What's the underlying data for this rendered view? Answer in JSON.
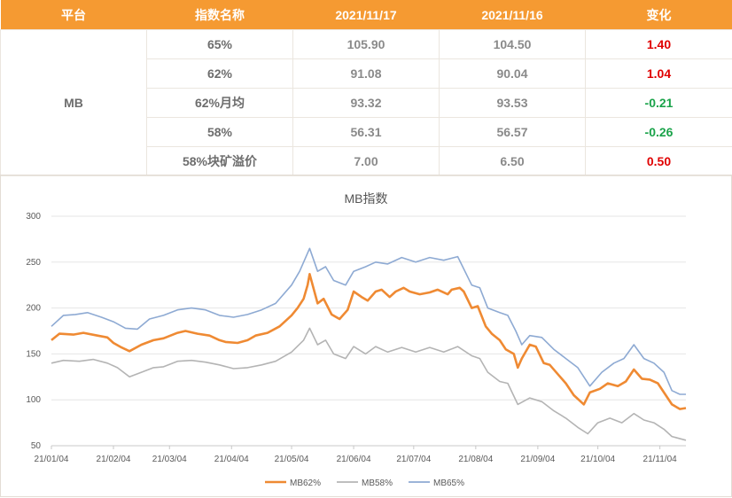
{
  "table": {
    "headers": [
      "平台",
      "指数名称",
      "2021/11/17",
      "2021/11/16",
      "变化"
    ],
    "platform": "MB",
    "rows": [
      {
        "name": "65%",
        "v1": "105.90",
        "v2": "104.50",
        "change": "1.40",
        "direction": "up"
      },
      {
        "name": "62%",
        "v1": "91.08",
        "v2": "90.04",
        "change": "1.04",
        "direction": "up"
      },
      {
        "name": "62%月均",
        "v1": "93.32",
        "v2": "93.53",
        "change": "-0.21",
        "direction": "down"
      },
      {
        "name": "58%",
        "v1": "56.31",
        "v2": "56.57",
        "change": "-0.26",
        "direction": "down"
      },
      {
        "name": "58%块矿溢价",
        "v1": "7.00",
        "v2": "6.50",
        "change": "0.50",
        "direction": "up"
      }
    ],
    "colors": {
      "header_bg": "#f59a32",
      "header_text": "#ffffff",
      "up": "#e00000",
      "down": "#1aa34a"
    }
  },
  "chart_data": {
    "type": "line",
    "title": "MB指数",
    "y_ticks": [
      "300",
      "250",
      "200",
      "150",
      "100",
      "50"
    ],
    "ylim": [
      50,
      300
    ],
    "x_ticks": [
      "21/01/04",
      "21/02/04",
      "21/03/04",
      "21/04/04",
      "21/05/04",
      "21/06/04",
      "21/07/04",
      "21/08/04",
      "21/09/04",
      "21/10/04",
      "21/11/04"
    ],
    "x_range": [
      "2021-01-04",
      "2021-11-17"
    ],
    "grid": "horizontal",
    "legend_position": "bottom",
    "series": [
      {
        "name": "MB62%",
        "color": "#ef8a33",
        "points": [
          [
            "2021-01-04",
            165
          ],
          [
            "2021-01-08",
            172
          ],
          [
            "2021-01-15",
            171
          ],
          [
            "2021-01-20",
            173
          ],
          [
            "2021-01-27",
            170
          ],
          [
            "2021-02-01",
            168
          ],
          [
            "2021-02-04",
            162
          ],
          [
            "2021-02-08",
            157
          ],
          [
            "2021-02-12",
            153
          ],
          [
            "2021-02-18",
            160
          ],
          [
            "2021-02-24",
            165
          ],
          [
            "2021-03-01",
            167
          ],
          [
            "2021-03-08",
            173
          ],
          [
            "2021-03-12",
            175
          ],
          [
            "2021-03-18",
            172
          ],
          [
            "2021-03-24",
            170
          ],
          [
            "2021-03-29",
            165
          ],
          [
            "2021-04-01",
            163
          ],
          [
            "2021-04-07",
            162
          ],
          [
            "2021-04-12",
            165
          ],
          [
            "2021-04-16",
            170
          ],
          [
            "2021-04-22",
            173
          ],
          [
            "2021-04-28",
            180
          ],
          [
            "2021-05-04",
            192
          ],
          [
            "2021-05-07",
            200
          ],
          [
            "2021-05-10",
            210
          ],
          [
            "2021-05-12",
            225
          ],
          [
            "2021-05-13",
            237
          ],
          [
            "2021-05-17",
            205
          ],
          [
            "2021-05-20",
            210
          ],
          [
            "2021-05-24",
            193
          ],
          [
            "2021-05-28",
            188
          ],
          [
            "2021-06-01",
            198
          ],
          [
            "2021-06-04",
            218
          ],
          [
            "2021-06-08",
            212
          ],
          [
            "2021-06-11",
            208
          ],
          [
            "2021-06-15",
            218
          ],
          [
            "2021-06-18",
            220
          ],
          [
            "2021-06-22",
            212
          ],
          [
            "2021-06-25",
            218
          ],
          [
            "2021-06-29",
            222
          ],
          [
            "2021-07-02",
            218
          ],
          [
            "2021-07-07",
            215
          ],
          [
            "2021-07-12",
            217
          ],
          [
            "2021-07-16",
            220
          ],
          [
            "2021-07-21",
            215
          ],
          [
            "2021-07-23",
            220
          ],
          [
            "2021-07-27",
            222
          ],
          [
            "2021-07-29",
            218
          ],
          [
            "2021-08-02",
            200
          ],
          [
            "2021-08-05",
            202
          ],
          [
            "2021-08-09",
            180
          ],
          [
            "2021-08-12",
            172
          ],
          [
            "2021-08-16",
            165
          ],
          [
            "2021-08-19",
            155
          ],
          [
            "2021-08-23",
            150
          ],
          [
            "2021-08-25",
            135
          ],
          [
            "2021-08-27",
            145
          ],
          [
            "2021-08-31",
            160
          ],
          [
            "2021-09-03",
            158
          ],
          [
            "2021-09-07",
            140
          ],
          [
            "2021-09-10",
            138
          ],
          [
            "2021-09-14",
            128
          ],
          [
            "2021-09-18",
            118
          ],
          [
            "2021-09-22",
            105
          ],
          [
            "2021-09-27",
            95
          ],
          [
            "2021-09-30",
            108
          ],
          [
            "2021-10-05",
            112
          ],
          [
            "2021-10-09",
            118
          ],
          [
            "2021-10-14",
            115
          ],
          [
            "2021-10-18",
            120
          ],
          [
            "2021-10-22",
            133
          ],
          [
            "2021-10-26",
            123
          ],
          [
            "2021-10-30",
            122
          ],
          [
            "2021-11-03",
            118
          ],
          [
            "2021-11-06",
            108
          ],
          [
            "2021-11-10",
            95
          ],
          [
            "2021-11-14",
            90
          ],
          [
            "2021-11-17",
            91
          ]
        ]
      },
      {
        "name": "MB58%",
        "color": "#b4b4b4",
        "points": [
          [
            "2021-01-04",
            140
          ],
          [
            "2021-01-10",
            143
          ],
          [
            "2021-01-18",
            142
          ],
          [
            "2021-01-25",
            144
          ],
          [
            "2021-02-01",
            140
          ],
          [
            "2021-02-06",
            135
          ],
          [
            "2021-02-12",
            125
          ],
          [
            "2021-02-18",
            130
          ],
          [
            "2021-02-24",
            135
          ],
          [
            "2021-03-01",
            136
          ],
          [
            "2021-03-08",
            142
          ],
          [
            "2021-03-15",
            143
          ],
          [
            "2021-03-22",
            141
          ],
          [
            "2021-03-29",
            138
          ],
          [
            "2021-04-05",
            134
          ],
          [
            "2021-04-12",
            135
          ],
          [
            "2021-04-19",
            138
          ],
          [
            "2021-04-26",
            142
          ],
          [
            "2021-05-04",
            152
          ],
          [
            "2021-05-10",
            165
          ],
          [
            "2021-05-13",
            178
          ],
          [
            "2021-05-17",
            160
          ],
          [
            "2021-05-21",
            165
          ],
          [
            "2021-05-25",
            150
          ],
          [
            "2021-05-31",
            145
          ],
          [
            "2021-06-04",
            158
          ],
          [
            "2021-06-10",
            150
          ],
          [
            "2021-06-15",
            158
          ],
          [
            "2021-06-21",
            152
          ],
          [
            "2021-06-28",
            157
          ],
          [
            "2021-07-05",
            152
          ],
          [
            "2021-07-12",
            157
          ],
          [
            "2021-07-19",
            152
          ],
          [
            "2021-07-26",
            158
          ],
          [
            "2021-08-02",
            148
          ],
          [
            "2021-08-06",
            145
          ],
          [
            "2021-08-10",
            130
          ],
          [
            "2021-08-16",
            120
          ],
          [
            "2021-08-20",
            118
          ],
          [
            "2021-08-25",
            95
          ],
          [
            "2021-08-31",
            102
          ],
          [
            "2021-09-06",
            98
          ],
          [
            "2021-09-12",
            88
          ],
          [
            "2021-09-18",
            80
          ],
          [
            "2021-09-24",
            70
          ],
          [
            "2021-09-29",
            63
          ],
          [
            "2021-10-04",
            75
          ],
          [
            "2021-10-10",
            80
          ],
          [
            "2021-10-16",
            75
          ],
          [
            "2021-10-22",
            85
          ],
          [
            "2021-10-27",
            78
          ],
          [
            "2021-11-01",
            75
          ],
          [
            "2021-11-06",
            68
          ],
          [
            "2021-11-10",
            60
          ],
          [
            "2021-11-17",
            56
          ]
        ]
      },
      {
        "name": "MB65%",
        "color": "#8eaad3",
        "points": [
          [
            "2021-01-04",
            180
          ],
          [
            "2021-01-10",
            192
          ],
          [
            "2021-01-16",
            193
          ],
          [
            "2021-01-22",
            195
          ],
          [
            "2021-01-29",
            190
          ],
          [
            "2021-02-04",
            185
          ],
          [
            "2021-02-10",
            178
          ],
          [
            "2021-02-16",
            177
          ],
          [
            "2021-02-22",
            188
          ],
          [
            "2021-03-01",
            192
          ],
          [
            "2021-03-08",
            198
          ],
          [
            "2021-03-15",
            200
          ],
          [
            "2021-03-22",
            198
          ],
          [
            "2021-03-29",
            192
          ],
          [
            "2021-04-05",
            190
          ],
          [
            "2021-04-12",
            193
          ],
          [
            "2021-04-19",
            198
          ],
          [
            "2021-04-26",
            205
          ],
          [
            "2021-05-04",
            225
          ],
          [
            "2021-05-08",
            240
          ],
          [
            "2021-05-13",
            265
          ],
          [
            "2021-05-17",
            240
          ],
          [
            "2021-05-21",
            245
          ],
          [
            "2021-05-25",
            230
          ],
          [
            "2021-05-31",
            225
          ],
          [
            "2021-06-04",
            240
          ],
          [
            "2021-06-10",
            245
          ],
          [
            "2021-06-15",
            250
          ],
          [
            "2021-06-21",
            248
          ],
          [
            "2021-06-28",
            255
          ],
          [
            "2021-07-05",
            250
          ],
          [
            "2021-07-12",
            255
          ],
          [
            "2021-07-19",
            252
          ],
          [
            "2021-07-26",
            256
          ],
          [
            "2021-08-02",
            225
          ],
          [
            "2021-08-06",
            222
          ],
          [
            "2021-08-10",
            200
          ],
          [
            "2021-08-16",
            195
          ],
          [
            "2021-08-20",
            192
          ],
          [
            "2021-08-24",
            175
          ],
          [
            "2021-08-27",
            160
          ],
          [
            "2021-08-31",
            170
          ],
          [
            "2021-09-06",
            168
          ],
          [
            "2021-09-12",
            155
          ],
          [
            "2021-09-18",
            145
          ],
          [
            "2021-09-24",
            135
          ],
          [
            "2021-09-30",
            115
          ],
          [
            "2021-10-06",
            130
          ],
          [
            "2021-10-12",
            140
          ],
          [
            "2021-10-17",
            145
          ],
          [
            "2021-10-22",
            160
          ],
          [
            "2021-10-27",
            145
          ],
          [
            "2021-11-01",
            140
          ],
          [
            "2021-11-06",
            130
          ],
          [
            "2021-11-10",
            110
          ],
          [
            "2021-11-14",
            106
          ],
          [
            "2021-11-17",
            106
          ]
        ]
      }
    ]
  }
}
